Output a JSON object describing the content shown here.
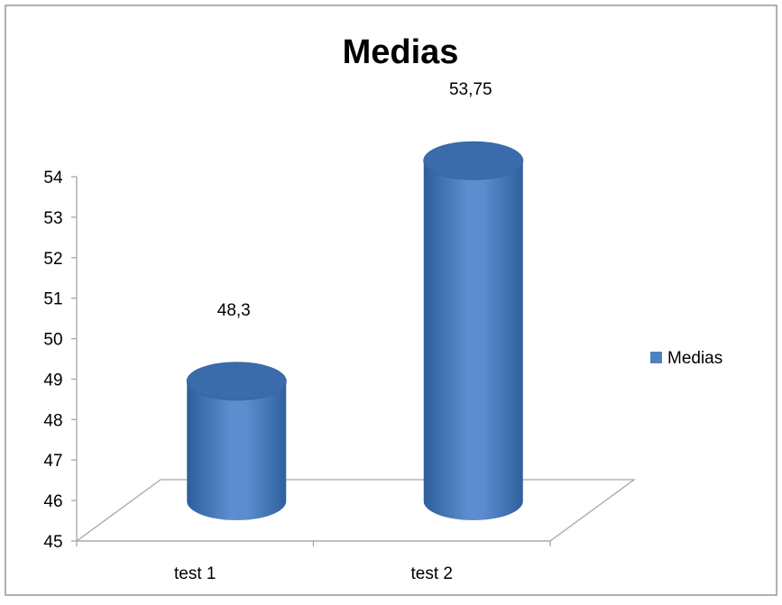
{
  "chart_data": {
    "type": "bar",
    "title": "Medias",
    "categories": [
      "test 1",
      "test 2"
    ],
    "series": [
      {
        "name": "Medias",
        "values": [
          48.3,
          53.75
        ],
        "labels": [
          "48,3",
          "53,75"
        ]
      }
    ],
    "ylim": [
      45,
      54
    ],
    "yticks": [
      "45",
      "46",
      "47",
      "48",
      "49",
      "50",
      "51",
      "52",
      "53",
      "54"
    ],
    "xlabel": "",
    "ylabel": "",
    "grid": false,
    "legend": "right",
    "style": "3d-cylinder",
    "colors": {
      "bar": "#4F81BD",
      "bar_dark": "#2E5C95",
      "bar_light": "#7AA3D9",
      "axis": "#A6A6A6",
      "frame": "#868686"
    }
  }
}
